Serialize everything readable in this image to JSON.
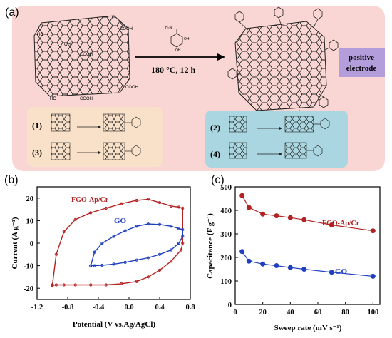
{
  "panel_a": {
    "label": "(a)",
    "reaction_condition": "180 °C, 12 h",
    "electrode_label_line1": "positive",
    "electrode_label_line2": "electrode",
    "routes": [
      "(1)",
      "(2)",
      "(3)",
      "(4)"
    ],
    "colors": {
      "background": "#f9d6d3",
      "box_left": "#f9e0c8",
      "box_right": "#a9d6e0",
      "electrode_box": "#b39ddb"
    }
  },
  "chart_data": [
    {
      "panel_label": "(b)",
      "type": "line",
      "xlabel": "Potential (V vs.Ag/AgCl)",
      "ylabel": "Current (A g⁻¹)",
      "xlim": [
        -1.2,
        0.8
      ],
      "ylim": [
        -25,
        25
      ],
      "x_ticks": [
        -1.2,
        -0.8,
        -0.4,
        0.0,
        0.4,
        0.8
      ],
      "x_tick_labels": [
        "-1.2",
        "-0.8",
        "-0.4",
        "0.0",
        "0.4",
        "0.8"
      ],
      "y_ticks": [
        -20,
        -10,
        0,
        10,
        20
      ],
      "y_tick_labels": [
        "-20",
        "-10",
        "0",
        "10",
        "20"
      ],
      "grid": false,
      "series": [
        {
          "name": "FGO-Ap/Cr",
          "color": "#b22222",
          "x": [
            -1.0,
            -0.95,
            -0.85,
            -0.7,
            -0.5,
            -0.3,
            -0.1,
            0.1,
            0.25,
            0.4,
            0.55,
            0.65,
            0.7,
            0.7,
            0.68,
            0.55,
            0.4,
            0.25,
            0.1,
            -0.1,
            -0.3,
            -0.5,
            -0.7,
            -0.85,
            -0.95,
            -1.0,
            -1.0
          ],
          "y": [
            -18.5,
            -5,
            5,
            10.5,
            13.5,
            15.5,
            17.5,
            19,
            19.5,
            18,
            16.5,
            16,
            15.5,
            0,
            -3,
            -8,
            -12,
            -15,
            -17,
            -18,
            -18.5,
            -18.5,
            -18.5,
            -18.5,
            -18.5,
            -18.7,
            -18.5
          ]
        },
        {
          "name": "GO",
          "color": "#1f3fbf",
          "x": [
            -0.5,
            -0.45,
            -0.35,
            -0.2,
            -0.05,
            0.1,
            0.25,
            0.4,
            0.55,
            0.65,
            0.7,
            0.7,
            0.65,
            0.55,
            0.4,
            0.25,
            0.1,
            -0.05,
            -0.2,
            -0.35,
            -0.45,
            -0.5
          ],
          "y": [
            -10,
            -4,
            0,
            3,
            5.5,
            7.5,
            8.5,
            8.3,
            7.5,
            6.5,
            6,
            3,
            0,
            -3,
            -5,
            -6.5,
            -7.5,
            -8.5,
            -9.3,
            -9.8,
            -10,
            -10
          ]
        }
      ]
    },
    {
      "panel_label": "(c)",
      "type": "line",
      "xlabel": "Sweep rate (mV s⁻¹)",
      "ylabel": "Capacitance (F g⁻¹)",
      "xlim": [
        0,
        105
      ],
      "ylim": [
        0,
        500
      ],
      "x_ticks": [
        0,
        20,
        40,
        60,
        80,
        100
      ],
      "x_tick_labels": [
        "0",
        "20",
        "40",
        "60",
        "80",
        "100"
      ],
      "y_ticks": [
        0,
        100,
        200,
        300,
        400,
        500
      ],
      "y_tick_labels": [
        "0",
        "100",
        "200",
        "300",
        "400",
        "500"
      ],
      "grid": false,
      "series": [
        {
          "name": "FGO-Ap/Cr",
          "color": "#b22222",
          "x": [
            5,
            10,
            20,
            30,
            40,
            50,
            70,
            100
          ],
          "y": [
            463,
            412,
            384,
            377,
            369,
            360,
            338,
            313
          ]
        },
        {
          "name": "GO",
          "color": "#1f3fbf",
          "x": [
            5,
            10,
            20,
            30,
            40,
            50,
            70,
            100
          ],
          "y": [
            225,
            184,
            172,
            165,
            157,
            150,
            137,
            120
          ]
        }
      ]
    }
  ]
}
